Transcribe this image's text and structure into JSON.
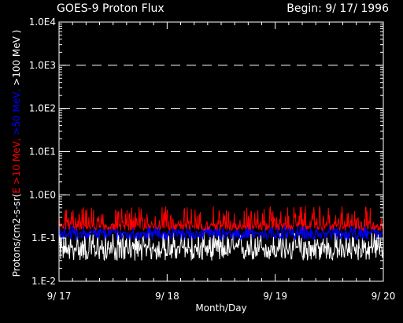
{
  "chart_data": {
    "type": "line",
    "title": "GOES-9 Proton Flux",
    "subtitle": "Begin: 9/ 17/ 1996",
    "xlabel": "Month/Day",
    "ylabel_parts": [
      {
        "text": "Protons/cm2-s-sr(",
        "color": "#ffffff"
      },
      {
        "text": "E >10 MeV, ",
        "color": "#ff0000"
      },
      {
        "text": ">50 MeV, ",
        "color": "#0000ff"
      },
      {
        "text": ">100 MeV )",
        "color": "#ffffff"
      }
    ],
    "y_scale": "log",
    "ylim": [
      0.01,
      10000
    ],
    "y_ticks": [
      {
        "value": 0.01,
        "label": "1.E-2"
      },
      {
        "value": 0.1,
        "label": "1.E-1"
      },
      {
        "value": 1,
        "label": "1.0E0"
      },
      {
        "value": 10,
        "label": "1.0E1"
      },
      {
        "value": 100,
        "label": "1.0E2"
      },
      {
        "value": 1000,
        "label": "1.0E3"
      },
      {
        "value": 10000,
        "label": "1.0E4"
      }
    ],
    "xlim": [
      0,
      3
    ],
    "x_ticks": [
      {
        "value": 0,
        "label": "9/ 17"
      },
      {
        "value": 1,
        "label": "9/ 18"
      },
      {
        "value": 2,
        "label": "9/ 19"
      },
      {
        "value": 3,
        "label": "9/ 20"
      }
    ],
    "grid": "dashed horizontal at decades 1E0-1E3",
    "series": [
      {
        "name": ">10 MeV",
        "color": "#ff0000",
        "typical": 0.2,
        "min": 0.15,
        "max": 0.55
      },
      {
        "name": ">50 MeV",
        "color": "#0000ff",
        "typical": 0.13,
        "min": 0.09,
        "max": 0.2
      },
      {
        "name": ">100 MeV",
        "color": "#ffffff",
        "typical": 0.06,
        "min": 0.03,
        "max": 0.14
      }
    ]
  }
}
